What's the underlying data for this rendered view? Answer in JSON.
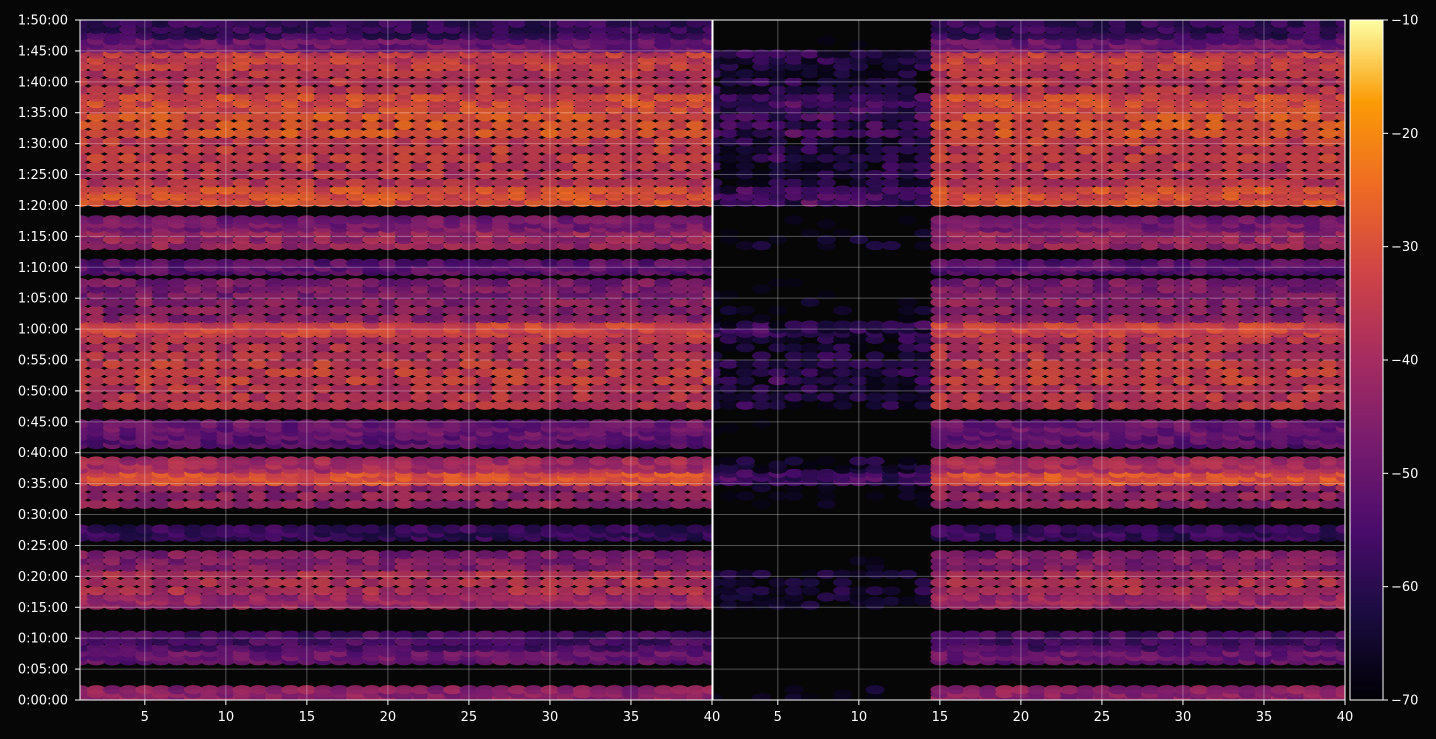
{
  "chart_data": {
    "type": "heatmap",
    "title": "",
    "colormap": "inferno",
    "background_color": "#060606",
    "grid": true,
    "panels": [
      {
        "name": "",
        "x_range": [
          1,
          40
        ],
        "active_x_range": [
          1,
          40
        ]
      },
      {
        "name": "",
        "x_range": [
          1,
          40
        ],
        "active_x_range": [
          15,
          40
        ],
        "sparse_x_range": [
          1,
          15
        ]
      }
    ],
    "x_ticks": [
      "5",
      "10",
      "15",
      "20",
      "25",
      "30",
      "35",
      "40"
    ],
    "x_tick_values": [
      5,
      10,
      15,
      20,
      25,
      30,
      35,
      40
    ],
    "y_range_seconds": [
      0,
      6600
    ],
    "y_ticks": [
      "0:00:00",
      "0:05:00",
      "0:10:00",
      "0:15:00",
      "0:20:00",
      "0:25:00",
      "0:30:00",
      "0:35:00",
      "0:40:00",
      "0:45:00",
      "0:50:00",
      "0:55:00",
      "1:00:00",
      "1:05:00",
      "1:10:00",
      "1:15:00",
      "1:20:00",
      "1:25:00",
      "1:30:00",
      "1:35:00",
      "1:40:00",
      "1:45:00",
      "1:50:00"
    ],
    "colorbar": {
      "min": -70,
      "max": -10,
      "ticks": [
        "-10",
        "-20",
        "-30",
        "-40",
        "-50",
        "-60",
        "-70"
      ],
      "tick_values": [
        -10,
        -20,
        -30,
        -40,
        -50,
        -60,
        -70
      ]
    },
    "bands": [
      {
        "y0": 0,
        "y1": 120,
        "level": -44
      },
      {
        "y0": 360,
        "y1": 480,
        "level": -50
      },
      {
        "y0": 480,
        "y1": 660,
        "level": -55
      },
      {
        "y0": 900,
        "y1": 1020,
        "level": -42
      },
      {
        "y0": 1020,
        "y1": 1260,
        "level": -38
      },
      {
        "y0": 1260,
        "y1": 1440,
        "level": -46
      },
      {
        "y0": 1560,
        "y1": 1680,
        "level": -58
      },
      {
        "y0": 1860,
        "y1": 2100,
        "level": -43
      },
      {
        "y0": 2100,
        "y1": 2220,
        "level": -30
      },
      {
        "y0": 2220,
        "y1": 2340,
        "level": -40
      },
      {
        "y0": 2460,
        "y1": 2580,
        "level": -52
      },
      {
        "y0": 2580,
        "y1": 2700,
        "level": -50
      },
      {
        "y0": 2820,
        "y1": 3060,
        "level": -36
      },
      {
        "y0": 3060,
        "y1": 3300,
        "level": -34
      },
      {
        "y0": 3300,
        "y1": 3540,
        "level": -37
      },
      {
        "y0": 3540,
        "y1": 3660,
        "level": -33
      },
      {
        "y0": 3660,
        "y1": 3900,
        "level": -44
      },
      {
        "y0": 3900,
        "y1": 4080,
        "level": -47
      },
      {
        "y0": 4140,
        "y1": 4260,
        "level": -52
      },
      {
        "y0": 4380,
        "y1": 4560,
        "level": -42
      },
      {
        "y0": 4560,
        "y1": 4680,
        "level": -48
      },
      {
        "y0": 4800,
        "y1": 4980,
        "level": -30
      },
      {
        "y0": 4980,
        "y1": 5220,
        "level": -36
      },
      {
        "y0": 5220,
        "y1": 5460,
        "level": -34
      },
      {
        "y0": 5460,
        "y1": 5700,
        "level": -29
      },
      {
        "y0": 5700,
        "y1": 5880,
        "level": -31
      },
      {
        "y0": 5880,
        "y1": 6120,
        "level": -36
      },
      {
        "y0": 6120,
        "y1": 6300,
        "level": -34
      },
      {
        "y0": 6300,
        "y1": 6420,
        "level": -50
      },
      {
        "y0": 6420,
        "y1": 6600,
        "level": -58
      }
    ]
  }
}
